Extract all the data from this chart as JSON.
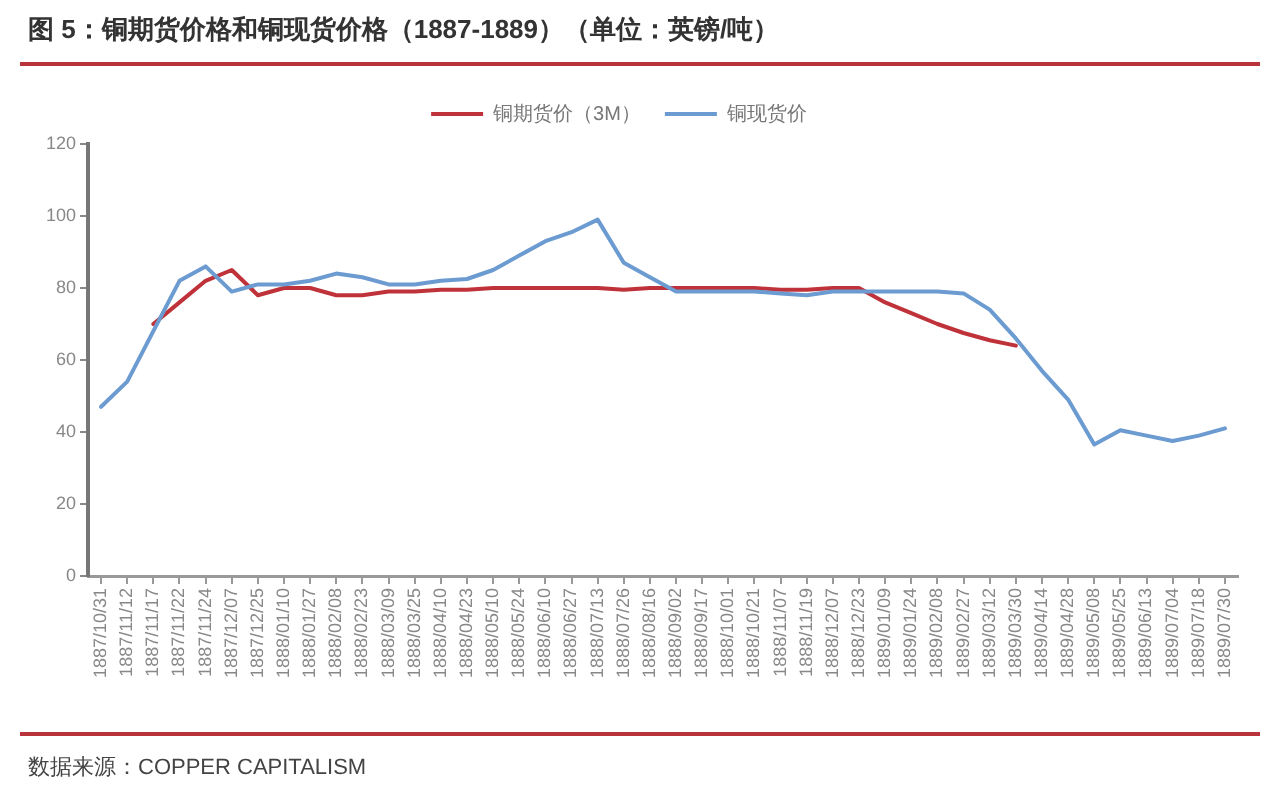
{
  "chart_data": {
    "type": "line",
    "title": "图 5：铜期货价格和铜现货价格（1887-1889）（单位：英镑/吨）",
    "categories": [
      "1887/10/31",
      "1887/11/12",
      "1887/11/17",
      "1887/11/22",
      "1887/11/24",
      "1887/12/07",
      "1887/12/25",
      "1888/01/10",
      "1888/01/27",
      "1888/02/08",
      "1888/02/23",
      "1888/03/09",
      "1888/03/25",
      "1888/04/10",
      "1888/04/23",
      "1888/05/10",
      "1888/05/24",
      "1888/06/10",
      "1888/06/27",
      "1888/07/13",
      "1888/07/26",
      "1888/08/16",
      "1888/09/02",
      "1888/09/17",
      "1888/10/01",
      "1888/10/21",
      "1888/11/07",
      "1888/11/19",
      "1888/12/07",
      "1888/12/23",
      "1889/01/09",
      "1889/01/24",
      "1889/02/08",
      "1889/02/27",
      "1889/03/12",
      "1889/03/30",
      "1889/04/14",
      "1889/04/28",
      "1889/05/08",
      "1889/05/25",
      "1889/06/13",
      "1889/07/04",
      "1889/07/18",
      "1889/07/30"
    ],
    "series": [
      {
        "name": "铜期货价（3M）",
        "color": "#c0323a",
        "values": [
          null,
          null,
          70,
          76,
          82,
          85,
          78,
          80,
          80,
          78,
          78,
          79,
          79,
          79.5,
          79.5,
          80,
          80,
          80,
          80,
          80,
          79.5,
          80,
          80,
          80,
          80,
          80,
          79.5,
          79.5,
          80,
          80,
          76,
          73,
          70,
          67.5,
          65.5,
          64,
          null,
          null,
          null,
          null,
          null,
          null,
          null,
          null
        ]
      },
      {
        "name": "铜现货价",
        "color": "#6b9bd0",
        "values": [
          47,
          54,
          68,
          82,
          86,
          79,
          81,
          81,
          82,
          84,
          83,
          81,
          81,
          82,
          82.5,
          85,
          89,
          93,
          95.5,
          99,
          87,
          83,
          79,
          79,
          79,
          79,
          78.5,
          78,
          79,
          79,
          79,
          79,
          79,
          78.5,
          74,
          66,
          57,
          49,
          36.5,
          40.5,
          39,
          37.5,
          39,
          41
        ]
      }
    ],
    "ylim": [
      0,
      120
    ],
    "yticks": [
      0,
      20,
      40,
      60,
      80,
      100,
      120
    ],
    "grid": false,
    "legend": "top",
    "marker": "none",
    "annotations": [
      "数据来源：COPPER CAPITALISM"
    ]
  }
}
